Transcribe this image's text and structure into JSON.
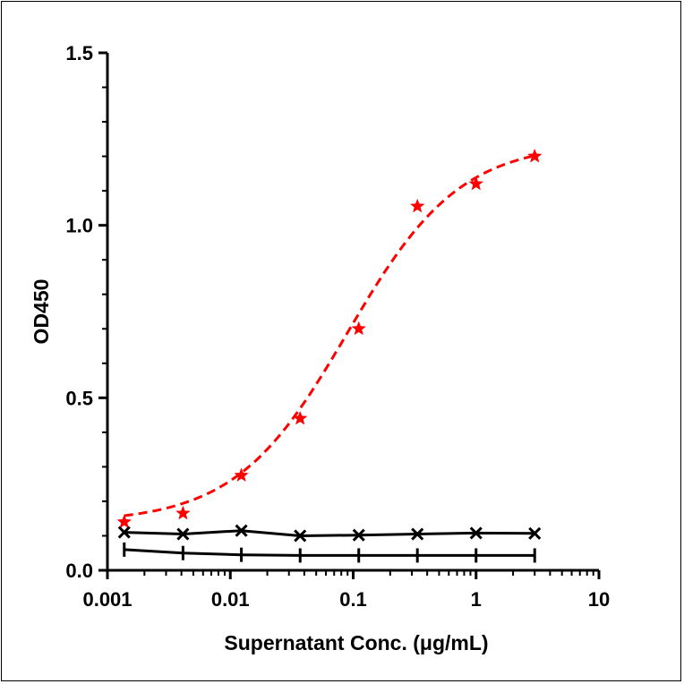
{
  "chart_data": {
    "type": "scatter",
    "xlabel": "Supernatant Conc. (μg/mL)",
    "ylabel": "OD450",
    "xscale": "log",
    "xlim": [
      0.001,
      10
    ],
    "ylim": [
      0,
      1.5
    ],
    "x_ticks": [
      {
        "value": 0.001,
        "label": "0.001"
      },
      {
        "value": 0.01,
        "label": "0.01"
      },
      {
        "value": 0.1,
        "label": "0.1"
      },
      {
        "value": 1,
        "label": "1"
      },
      {
        "value": 10,
        "label": "10"
      }
    ],
    "y_ticks": [
      {
        "value": 0.0,
        "label": "0.0"
      },
      {
        "value": 0.5,
        "label": "0.5"
      },
      {
        "value": 1.0,
        "label": "1.0"
      },
      {
        "value": 1.5,
        "label": "1.5"
      }
    ],
    "grid": false,
    "legend": "none",
    "series": [
      {
        "marker": "star",
        "color": "#ff0000",
        "line": "dashed-fit",
        "x": [
          0.00137,
          0.00412,
          0.0123,
          0.037,
          0.111,
          0.333,
          1.0,
          3.0
        ],
        "y": [
          0.14,
          0.165,
          0.275,
          0.44,
          0.7,
          1.055,
          1.12,
          1.2
        ],
        "fit": {
          "bottom": 0.138,
          "top": 1.24,
          "ec50": 0.09,
          "hill": 0.95
        }
      },
      {
        "marker": "x",
        "color": "#000000",
        "line": "solid",
        "x": [
          0.00137,
          0.00412,
          0.0123,
          0.037,
          0.111,
          0.333,
          1.0,
          3.0
        ],
        "y": [
          0.11,
          0.105,
          0.115,
          0.1,
          0.102,
          0.105,
          0.108,
          0.107
        ]
      },
      {
        "marker": "vertical-bar",
        "color": "#000000",
        "line": "solid",
        "x": [
          0.00137,
          0.00412,
          0.0123,
          0.037,
          0.111,
          0.333,
          1.0,
          3.0
        ],
        "y": [
          0.06,
          0.05,
          0.045,
          0.043,
          0.043,
          0.043,
          0.043,
          0.043
        ]
      }
    ]
  }
}
